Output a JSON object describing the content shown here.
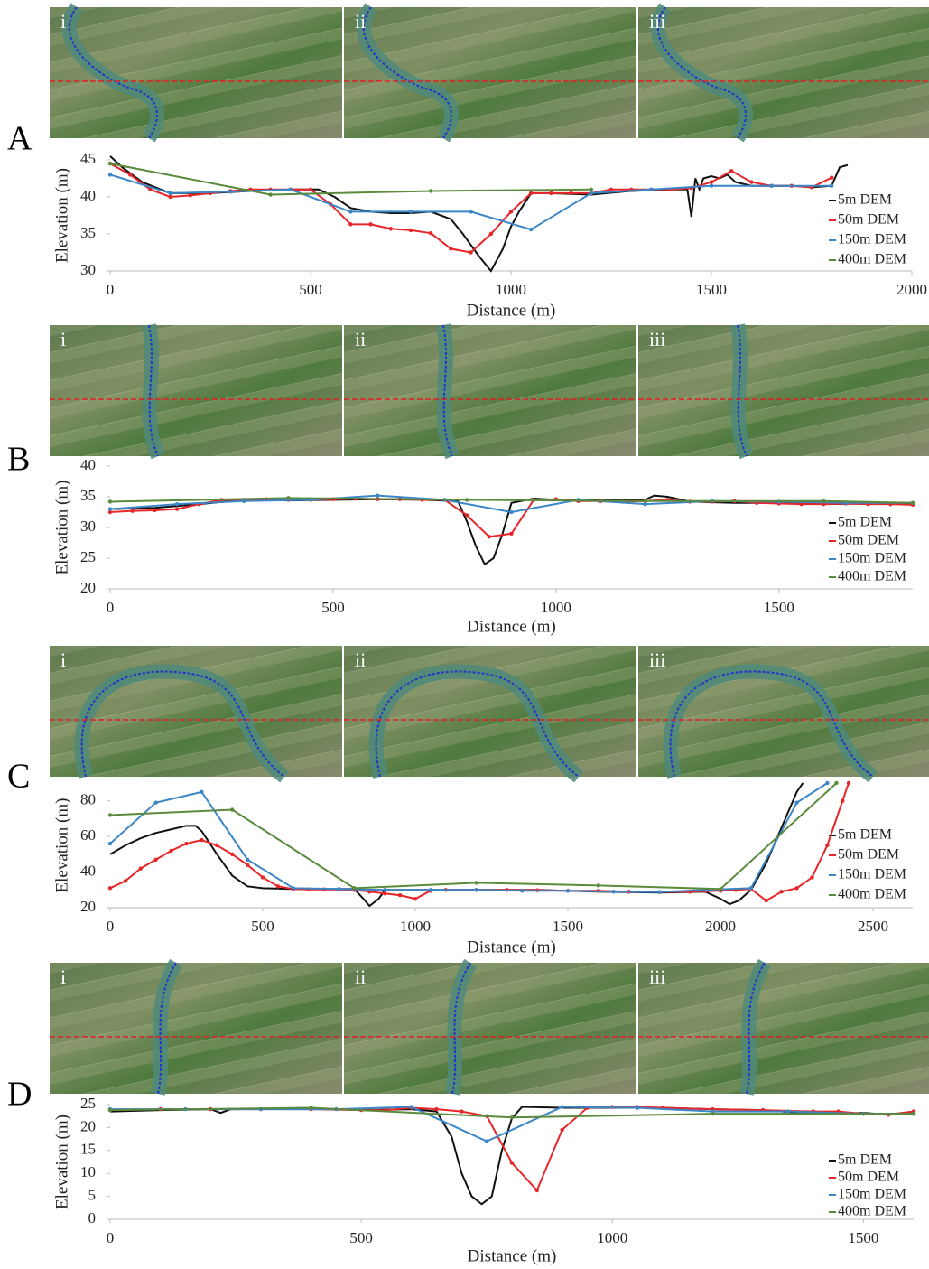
{
  "chart_data": [
    {
      "type": "line",
      "panel": "A",
      "image_labels": [
        "i",
        "ii",
        "iii"
      ],
      "xlabel": "Distance (m)",
      "ylabel": "Elevation (m)",
      "xlim": [
        0,
        2000
      ],
      "xticks": [
        0,
        500,
        1000,
        1500,
        2000
      ],
      "ylim": [
        30,
        45
      ],
      "yticks": [
        30,
        35,
        40,
        45
      ],
      "series": [
        {
          "name": "5m DEM",
          "color": "#111111",
          "marker": false,
          "x": [
            0,
            30,
            80,
            150,
            250,
            350,
            450,
            520,
            560,
            600,
            650,
            700,
            750,
            800,
            850,
            880,
            920,
            950,
            980,
            1000,
            1020,
            1050,
            1100,
            1200,
            1300,
            1400,
            1440,
            1450,
            1460,
            1470,
            1480,
            1500,
            1520,
            1540,
            1560,
            1600,
            1700,
            1750,
            1800,
            1820,
            1840
          ],
          "values": [
            45.5,
            44,
            42,
            40.5,
            40.5,
            40.8,
            41,
            41,
            40,
            38.5,
            38,
            37.8,
            37.8,
            38,
            37,
            35,
            32,
            30,
            33,
            36,
            38,
            40.5,
            40.5,
            40.3,
            40.8,
            41,
            41,
            37.3,
            42.5,
            41,
            42.5,
            42.8,
            42.5,
            43,
            42,
            41.5,
            41.5,
            41.3,
            41.5,
            44,
            44.3
          ]
        },
        {
          "name": "50m DEM",
          "color": "#e8262a",
          "marker": true,
          "x": [
            0,
            50,
            100,
            150,
            200,
            250,
            300,
            350,
            400,
            450,
            500,
            550,
            600,
            650,
            700,
            750,
            800,
            850,
            900,
            950,
            1000,
            1050,
            1100,
            1150,
            1200,
            1250,
            1300,
            1350,
            1400,
            1450,
            1500,
            1550,
            1600,
            1650,
            1700,
            1750,
            1800
          ],
          "values": [
            44.5,
            43,
            41,
            40,
            40.2,
            40.5,
            40.8,
            41,
            41,
            41,
            41,
            39,
            36.3,
            36.3,
            35.7,
            35.5,
            35.1,
            33,
            32.5,
            35,
            38,
            40.5,
            40.5,
            40.5,
            40.5,
            41,
            41,
            41,
            41,
            41.2,
            42,
            43.5,
            42,
            41.5,
            41.5,
            41.3,
            42.6
          ]
        },
        {
          "name": "150m DEM",
          "color": "#3b86c6",
          "marker": true,
          "x": [
            0,
            150,
            300,
            450,
            600,
            750,
            900,
            1050,
            1200,
            1350,
            1500,
            1650,
            1800
          ],
          "values": [
            43,
            40.5,
            40.7,
            41,
            38,
            38,
            38,
            35.6,
            40.5,
            41,
            41.5,
            41.5,
            41.5
          ]
        },
        {
          "name": "400m DEM",
          "color": "#5a8a3c",
          "marker": true,
          "x": [
            0,
            400,
            800,
            1200
          ],
          "values": [
            44.5,
            40.3,
            40.8,
            41
          ]
        }
      ]
    },
    {
      "type": "line",
      "panel": "B",
      "image_labels": [
        "i",
        "ii",
        "iii"
      ],
      "xlabel": "Distance (m)",
      "ylabel": "Elevation (m)",
      "xlim": [
        0,
        1800
      ],
      "xticks": [
        0,
        500,
        1000,
        1500
      ],
      "ylim": [
        20,
        40
      ],
      "yticks": [
        20,
        25,
        30,
        35,
        40
      ],
      "series": [
        {
          "name": "5m DEM",
          "color": "#111111",
          "marker": false,
          "x": [
            0,
            100,
            200,
            300,
            400,
            500,
            600,
            700,
            780,
            800,
            820,
            840,
            860,
            880,
            900,
            950,
            1000,
            1100,
            1200,
            1220,
            1250,
            1300,
            1400,
            1500,
            1600,
            1700,
            1800
          ],
          "values": [
            33,
            33.2,
            33.8,
            34.5,
            34.4,
            34.5,
            34.6,
            34.5,
            34.3,
            31,
            27,
            24,
            25,
            29,
            34,
            34.7,
            34.5,
            34.4,
            34.5,
            35.2,
            35,
            34.2,
            34,
            34,
            33.8,
            33.9,
            33.8
          ]
        },
        {
          "name": "50m DEM",
          "color": "#e8262a",
          "marker": true,
          "x": [
            0,
            50,
            100,
            150,
            200,
            250,
            300,
            350,
            400,
            450,
            500,
            550,
            600,
            650,
            700,
            750,
            800,
            850,
            900,
            950,
            1000,
            1050,
            1100,
            1150,
            1200,
            1250,
            1300,
            1350,
            1400,
            1450,
            1500,
            1550,
            1600,
            1650,
            1700,
            1750,
            1800
          ],
          "values": [
            32.5,
            32.7,
            32.8,
            33,
            33.8,
            34.5,
            34.5,
            34.6,
            34.5,
            34.5,
            34.6,
            34.7,
            34.6,
            34.6,
            34.5,
            34.5,
            32,
            28.5,
            29,
            34.5,
            34.6,
            34.3,
            34.3,
            34.2,
            34.3,
            34.5,
            34.2,
            34.2,
            34.3,
            34,
            33.9,
            33.8,
            33.8,
            33.9,
            33.8,
            33.8,
            33.7
          ]
        },
        {
          "name": "150m DEM",
          "color": "#3b86c6",
          "marker": true,
          "x": [
            0,
            150,
            300,
            450,
            600,
            750,
            900,
            1050,
            1200,
            1350,
            1500,
            1650,
            1800
          ],
          "values": [
            33,
            33.8,
            34.3,
            34.5,
            35.2,
            34.5,
            32.5,
            34.5,
            33.8,
            34.3,
            34.2,
            34,
            34
          ]
        },
        {
          "name": "400m DEM",
          "color": "#5a8a3c",
          "marker": true,
          "x": [
            0,
            400,
            800,
            1200,
            1600,
            1800
          ],
          "values": [
            34.2,
            34.8,
            34.5,
            34.3,
            34.3,
            34
          ]
        }
      ]
    },
    {
      "type": "line",
      "panel": "C",
      "image_labels": [
        "i",
        "ii",
        "iii"
      ],
      "xlabel": "Distance (m)",
      "ylabel": "Elevation (m)",
      "xlim": [
        0,
        2630
      ],
      "xticks": [
        0,
        500,
        1000,
        1500,
        2000,
        2500
      ],
      "ylim": [
        20,
        90
      ],
      "yticks": [
        20,
        40,
        60,
        80
      ],
      "series": [
        {
          "name": "5m DEM",
          "color": "#111111",
          "marker": false,
          "x": [
            0,
            50,
            100,
            150,
            200,
            250,
            280,
            300,
            350,
            400,
            450,
            500,
            600,
            800,
            830,
            850,
            880,
            900,
            1000,
            1200,
            1400,
            1600,
            1800,
            1950,
            2000,
            2030,
            2060,
            2100,
            2150,
            2200,
            2250,
            2270
          ],
          "values": [
            50,
            55,
            59,
            62,
            64,
            66,
            66,
            63,
            50,
            38,
            32,
            31,
            30.5,
            30.5,
            25,
            21,
            25,
            30,
            30,
            30,
            30,
            29,
            28.5,
            29,
            25,
            22,
            24,
            30,
            45,
            65,
            85,
            90
          ]
        },
        {
          "name": "50m DEM",
          "color": "#e8262a",
          "marker": true,
          "x": [
            0,
            50,
            100,
            150,
            200,
            250,
            300,
            350,
            400,
            450,
            500,
            550,
            600,
            650,
            700,
            750,
            800,
            850,
            900,
            950,
            1000,
            1050,
            1100,
            1200,
            1300,
            1400,
            1500,
            1600,
            1700,
            1800,
            1900,
            1950,
            2000,
            2050,
            2100,
            2150,
            2200,
            2250,
            2300,
            2350,
            2400,
            2420
          ],
          "values": [
            31,
            35,
            42,
            47,
            52,
            56,
            58,
            55,
            50,
            44,
            37,
            32,
            30.5,
            30.3,
            30.3,
            30.2,
            30,
            29,
            28,
            27,
            25,
            29.5,
            30,
            30,
            30,
            29.8,
            29.5,
            29.5,
            29,
            28.8,
            29,
            29.3,
            29.5,
            30,
            30.5,
            24,
            29,
            31,
            37,
            55,
            80,
            90
          ]
        },
        {
          "name": "150m DEM",
          "color": "#3b86c6",
          "marker": true,
          "x": [
            0,
            150,
            300,
            450,
            600,
            750,
            900,
            1050,
            1200,
            1350,
            1500,
            1650,
            1800,
            1950,
            2100,
            2250,
            2350
          ],
          "values": [
            56,
            79,
            85,
            47,
            31,
            30.5,
            30,
            30,
            30,
            29.5,
            29.5,
            29,
            28.8,
            30,
            31,
            79,
            90
          ]
        },
        {
          "name": "400m DEM",
          "color": "#5a8a3c",
          "marker": true,
          "x": [
            0,
            400,
            800,
            1200,
            1600,
            2000,
            2380
          ],
          "values": [
            72,
            75,
            31,
            34,
            32.5,
            30.5,
            90
          ]
        }
      ]
    },
    {
      "type": "line",
      "panel": "D",
      "image_labels": [
        "i",
        "ii",
        "iii"
      ],
      "xlabel": "Distance (m)",
      "ylabel": "Elevation (m)",
      "xlim": [
        0,
        1600
      ],
      "xticks": [
        0,
        500,
        1000,
        1500
      ],
      "ylim": [
        0,
        25
      ],
      "yticks": [
        0,
        5,
        10,
        15,
        20,
        25
      ],
      "series": [
        {
          "name": "5m DEM",
          "color": "#111111",
          "marker": false,
          "x": [
            0,
            100,
            200,
            220,
            240,
            400,
            500,
            600,
            650,
            680,
            700,
            720,
            740,
            760,
            780,
            800,
            820,
            900,
            1000,
            1100,
            1200,
            1300,
            1400,
            1450,
            1500,
            1550,
            1600
          ],
          "values": [
            23.5,
            23.8,
            24,
            23.2,
            24,
            24.2,
            23.8,
            24,
            23.5,
            18,
            10,
            5,
            3.3,
            5,
            15,
            22,
            24.5,
            24.3,
            24.3,
            24.3,
            24,
            23.8,
            23,
            23,
            23.2,
            22.8,
            23.5
          ]
        },
        {
          "name": "50m DEM",
          "color": "#e8262a",
          "marker": true,
          "x": [
            0,
            100,
            200,
            300,
            400,
            500,
            550,
            600,
            650,
            700,
            750,
            800,
            850,
            900,
            950,
            1000,
            1050,
            1100,
            1200,
            1300,
            1400,
            1450,
            1500,
            1550,
            1600
          ],
          "values": [
            23.8,
            24,
            24,
            24,
            24,
            23.8,
            23.8,
            24.3,
            24,
            23.5,
            22.5,
            12.3,
            6.3,
            19.5,
            24.3,
            24.5,
            24.5,
            24.3,
            24,
            23.8,
            23.5,
            23.5,
            23,
            22.8,
            23.5
          ]
        },
        {
          "name": "150m DEM",
          "color": "#3b86c6",
          "marker": true,
          "x": [
            0,
            150,
            300,
            450,
            600,
            750,
            900,
            1050,
            1200,
            1350,
            1500,
            1600
          ],
          "values": [
            24,
            24,
            24,
            24,
            24.5,
            17,
            24.5,
            24.3,
            23.5,
            23.5,
            23,
            23
          ]
        },
        {
          "name": "400m DEM",
          "color": "#5a8a3c",
          "marker": true,
          "x": [
            0,
            400,
            800,
            1200,
            1600
          ],
          "values": [
            23.8,
            24.3,
            22.2,
            23,
            23
          ]
        }
      ]
    }
  ]
}
